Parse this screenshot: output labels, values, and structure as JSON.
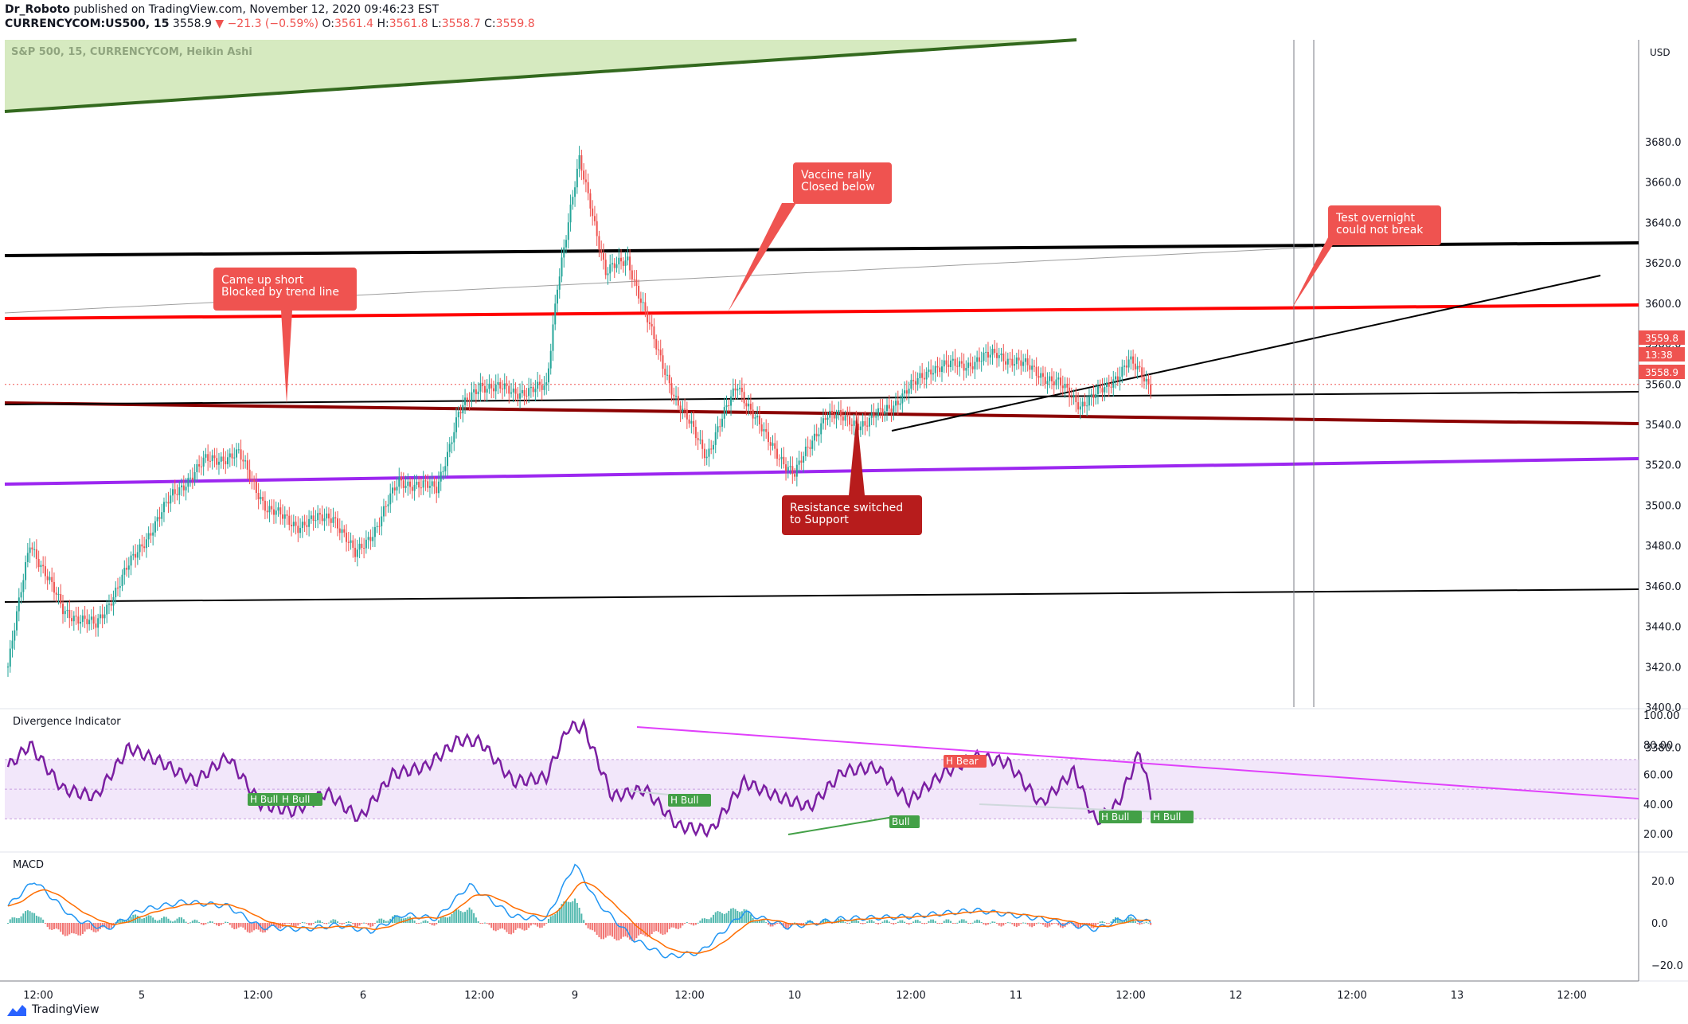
{
  "header": {
    "author": "Dr_Roboto",
    "published_text": "published on TradingView.com, November 12, 2020 09:46:23 EST",
    "symbol": "CURRENCYCOM:US500, 15",
    "price": "3558.9",
    "change": "▼ −21.3 (−0.59%)",
    "open_label": "O:",
    "open": "3561.4",
    "high_label": "H:",
    "high": "3561.8",
    "low_label": "L:",
    "low": "3558.7",
    "close_label": "C:",
    "close": "3559.8"
  },
  "colors": {
    "bull": "#26a69a",
    "bear": "#ef5350",
    "rsi": "#7b1fa2",
    "macd": "#2196f3",
    "signal": "#ff6d00"
  },
  "chart_data": [
    {
      "type": "candlestick",
      "title": "S&P 500, 15, CURRENCYCOM, Heikin Ashi",
      "currency": "USD",
      "y_ticks": [
        "3680.0",
        "3660.0",
        "3640.0",
        "3620.0",
        "3600.0",
        "3580.0",
        "3560.0",
        "3540.0",
        "3520.0",
        "3500.0",
        "3480.0",
        "3460.0",
        "3440.0",
        "3420.0",
        "3400.0",
        "3380.0"
      ],
      "ylim": [
        3378,
        3690
      ],
      "x_ticks": [
        "12:00",
        "5",
        "12:00",
        "6",
        "12:00",
        "9",
        "12:00",
        "10",
        "12:00",
        "11",
        "12:00",
        "12",
        "12:00",
        "13",
        "12:00"
      ],
      "price_labels": {
        "last": "3559.8",
        "countdown": "13:38",
        "current": "3558.9"
      },
      "close_path": [
        {
          "i": 0,
          "c": 3420
        },
        {
          "i": 10,
          "c": 3482
        },
        {
          "i": 25,
          "c": 3448
        },
        {
          "i": 40,
          "c": 3440
        },
        {
          "i": 55,
          "c": 3470
        },
        {
          "i": 75,
          "c": 3505
        },
        {
          "i": 90,
          "c": 3522
        },
        {
          "i": 105,
          "c": 3525
        },
        {
          "i": 118,
          "c": 3498
        },
        {
          "i": 132,
          "c": 3490
        },
        {
          "i": 148,
          "c": 3495
        },
        {
          "i": 158,
          "c": 3475
        },
        {
          "i": 168,
          "c": 3490
        },
        {
          "i": 178,
          "c": 3512
        },
        {
          "i": 195,
          "c": 3508
        },
        {
          "i": 205,
          "c": 3545
        },
        {
          "i": 215,
          "c": 3560
        },
        {
          "i": 230,
          "c": 3556
        },
        {
          "i": 245,
          "c": 3558
        },
        {
          "i": 250,
          "c": 3610
        },
        {
          "i": 260,
          "c": 3670
        },
        {
          "i": 265,
          "c": 3650
        },
        {
          "i": 272,
          "c": 3615
        },
        {
          "i": 282,
          "c": 3622
        },
        {
          "i": 295,
          "c": 3578
        },
        {
          "i": 305,
          "c": 3550
        },
        {
          "i": 318,
          "c": 3525
        },
        {
          "i": 332,
          "c": 3560
        },
        {
          "i": 345,
          "c": 3533
        },
        {
          "i": 358,
          "c": 3515
        },
        {
          "i": 372,
          "c": 3545
        },
        {
          "i": 390,
          "c": 3540
        },
        {
          "i": 405,
          "c": 3552
        },
        {
          "i": 420,
          "c": 3568
        },
        {
          "i": 437,
          "c": 3570
        },
        {
          "i": 450,
          "c": 3575
        },
        {
          "i": 465,
          "c": 3568
        },
        {
          "i": 478,
          "c": 3560
        },
        {
          "i": 488,
          "c": 3550
        },
        {
          "i": 500,
          "c": 3558
        },
        {
          "i": 510,
          "c": 3572
        },
        {
          "i": 520,
          "c": 3558
        }
      ],
      "bars": 521,
      "trend_lines": [
        {
          "name": "green-channel",
          "color": "#33691e",
          "fill": "#c5e1a5"
        },
        {
          "name": "black-upper",
          "color": "#000000"
        },
        {
          "name": "gray-thin",
          "color": "#9e9e9e"
        },
        {
          "name": "red-resistance",
          "color": "#ff0000"
        },
        {
          "name": "darkred-support",
          "color": "#8b0000"
        },
        {
          "name": "purple",
          "color": "#9c27f0"
        },
        {
          "name": "black-lower",
          "color": "#000000"
        },
        {
          "name": "black-mid",
          "color": "#000000"
        },
        {
          "name": "black-rising",
          "color": "#000000"
        }
      ],
      "annotations": [
        {
          "text": [
            "Came up short",
            "Blocked by trend line"
          ],
          "color": "#ef5350"
        },
        {
          "text": [
            "Vaccine rally",
            "Closed below"
          ],
          "color": "#ef5350"
        },
        {
          "text": [
            "Test overnight",
            "could not break"
          ],
          "color": "#ef5350"
        },
        {
          "text": [
            "Resistance switched",
            "to Support"
          ],
          "color": "#b71c1c"
        }
      ]
    },
    {
      "type": "line",
      "title": "Divergence Indicator",
      "y_ticks": [
        "100.00",
        "80.00",
        "60.00",
        "40.00",
        "20.00"
      ],
      "ylim": [
        15,
        100
      ],
      "band": [
        30,
        70
      ],
      "rsi_path": [
        {
          "i": 0,
          "v": 65
        },
        {
          "i": 10,
          "v": 80
        },
        {
          "i": 25,
          "v": 50
        },
        {
          "i": 40,
          "v": 45
        },
        {
          "i": 55,
          "v": 78
        },
        {
          "i": 70,
          "v": 68
        },
        {
          "i": 85,
          "v": 55
        },
        {
          "i": 100,
          "v": 72
        },
        {
          "i": 115,
          "v": 40
        },
        {
          "i": 130,
          "v": 35
        },
        {
          "i": 145,
          "v": 48
        },
        {
          "i": 160,
          "v": 30
        },
        {
          "i": 175,
          "v": 60
        },
        {
          "i": 190,
          "v": 65
        },
        {
          "i": 205,
          "v": 83
        },
        {
          "i": 215,
          "v": 82
        },
        {
          "i": 230,
          "v": 55
        },
        {
          "i": 245,
          "v": 58
        },
        {
          "i": 255,
          "v": 92
        },
        {
          "i": 262,
          "v": 92
        },
        {
          "i": 275,
          "v": 45
        },
        {
          "i": 290,
          "v": 50
        },
        {
          "i": 305,
          "v": 25
        },
        {
          "i": 320,
          "v": 22
        },
        {
          "i": 335,
          "v": 55
        },
        {
          "i": 350,
          "v": 45
        },
        {
          "i": 365,
          "v": 38
        },
        {
          "i": 380,
          "v": 62
        },
        {
          "i": 395,
          "v": 65
        },
        {
          "i": 410,
          "v": 42
        },
        {
          "i": 425,
          "v": 60
        },
        {
          "i": 440,
          "v": 72
        },
        {
          "i": 455,
          "v": 68
        },
        {
          "i": 470,
          "v": 40
        },
        {
          "i": 485,
          "v": 62
        },
        {
          "i": 495,
          "v": 28
        },
        {
          "i": 505,
          "v": 40
        },
        {
          "i": 515,
          "v": 75
        },
        {
          "i": 520,
          "v": 45
        }
      ],
      "labels": [
        {
          "text": "H Bull",
          "color": "#43a047"
        },
        {
          "text": "H Bull",
          "color": "#43a047"
        },
        {
          "text": "H Bull",
          "color": "#43a047"
        },
        {
          "text": "Bull",
          "color": "#43a047"
        },
        {
          "text": "H Bear",
          "color": "#ef5350"
        },
        {
          "text": "H Bull",
          "color": "#43a047"
        },
        {
          "text": "H Bull",
          "color": "#43a047"
        }
      ]
    },
    {
      "type": "line",
      "title": "MACD",
      "y_ticks": [
        "20.0",
        "0.0",
        "−20.0"
      ],
      "ylim": [
        -22,
        30
      ],
      "macd_path": [
        {
          "i": 0,
          "v": 8
        },
        {
          "i": 12,
          "v": 20
        },
        {
          "i": 30,
          "v": 2
        },
        {
          "i": 45,
          "v": -3
        },
        {
          "i": 60,
          "v": 6
        },
        {
          "i": 80,
          "v": 10
        },
        {
          "i": 100,
          "v": 8
        },
        {
          "i": 115,
          "v": -2
        },
        {
          "i": 135,
          "v": -3
        },
        {
          "i": 150,
          "v": -1
        },
        {
          "i": 165,
          "v": -4
        },
        {
          "i": 180,
          "v": 4
        },
        {
          "i": 195,
          "v": 2
        },
        {
          "i": 210,
          "v": 18
        },
        {
          "i": 230,
          "v": 3
        },
        {
          "i": 245,
          "v": 2
        },
        {
          "i": 258,
          "v": 28
        },
        {
          "i": 268,
          "v": 10
        },
        {
          "i": 285,
          "v": -8
        },
        {
          "i": 300,
          "v": -16
        },
        {
          "i": 315,
          "v": -14
        },
        {
          "i": 335,
          "v": 5
        },
        {
          "i": 355,
          "v": -2
        },
        {
          "i": 380,
          "v": 2
        },
        {
          "i": 410,
          "v": 3
        },
        {
          "i": 440,
          "v": 6
        },
        {
          "i": 470,
          "v": 2
        },
        {
          "i": 495,
          "v": -3
        },
        {
          "i": 510,
          "v": 3
        },
        {
          "i": 520,
          "v": 0
        }
      ]
    }
  ],
  "footer": {
    "brand": "TradingView"
  }
}
